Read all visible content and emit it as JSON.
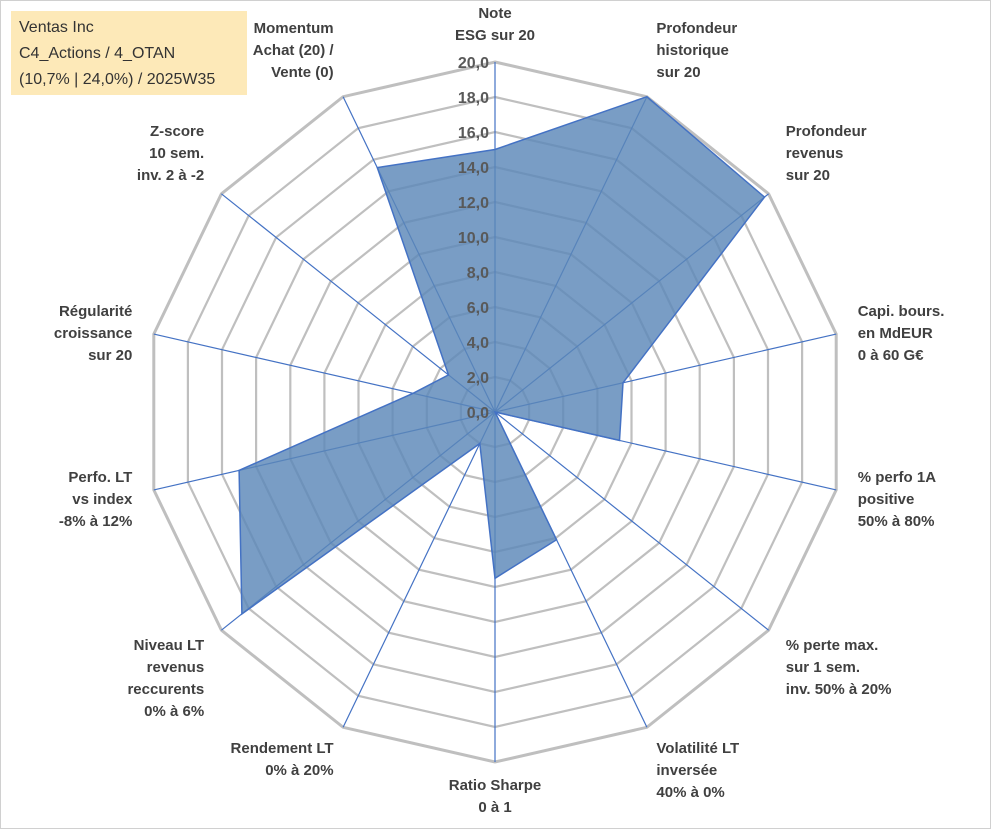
{
  "info_box": {
    "company": "Ventas Inc",
    "portfolio": "C4_Actions / 4_OTAN",
    "stats": "(10,7% | 24,0%) / 2025W35"
  },
  "chart_data": {
    "type": "radar",
    "rmin": 0,
    "rmax": 20,
    "tick_step": 2,
    "tick_labels": [
      "0,0",
      "2,0",
      "4,0",
      "6,0",
      "8,0",
      "10,0",
      "12,0",
      "14,0",
      "16,0",
      "18,0",
      "20,0"
    ],
    "axes": [
      {
        "label": [
          "Note",
          "ESG sur 20"
        ],
        "value": 15.0
      },
      {
        "label": [
          "Profondeur",
          "historique",
          "sur 20"
        ],
        "value": 20.0
      },
      {
        "label": [
          "Profondeur",
          "revenus",
          "sur 20"
        ],
        "value": 19.7
      },
      {
        "label": [
          "Capi. bours.",
          "en MdEUR",
          "0 à 60 G€"
        ],
        "value": 7.5
      },
      {
        "label": [
          "% perfo 1A",
          "positive",
          "50% à 80%"
        ],
        "value": 7.3
      },
      {
        "label": [
          "% perte max.",
          "sur 1 sem.",
          "inv. 50% à 20%"
        ],
        "value": 0.0
      },
      {
        "label": [
          "Volatilité LT",
          "inversée",
          "40% à 0%"
        ],
        "value": 8.1
      },
      {
        "label": [
          "Ratio Sharpe",
          "0 à 1"
        ],
        "value": 9.5
      },
      {
        "label": [
          "Rendement LT",
          "0% à 20%"
        ],
        "value": 2.0
      },
      {
        "label": [
          "Niveau LT",
          "revenus",
          "reccurents",
          "0% à 6%"
        ],
        "value": 18.5
      },
      {
        "label": [
          "Perfo. LT",
          "vs index",
          "-8% à 12%"
        ],
        "value": 15.0
      },
      {
        "label": [
          "Régularité",
          "croissance",
          "sur 20"
        ],
        "value": 4.8
      },
      {
        "label": [
          "Z-score",
          "10 sem.",
          "inv. 2 à -2"
        ],
        "value": 3.4
      },
      {
        "label": [
          "Momentum",
          "Achat (20) /",
          "Vente (0)"
        ],
        "value": 15.5
      }
    ],
    "colors": {
      "fill": "#5b87b8",
      "stroke": "#4472c4",
      "grid": "#bfbfbf",
      "spoke": "#4472c4"
    }
  }
}
